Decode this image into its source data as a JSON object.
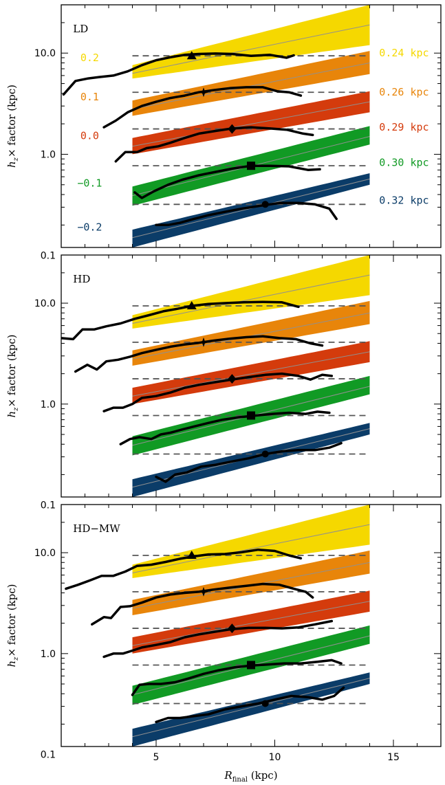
{
  "chart_data": {
    "type": "line",
    "xlabel": "R",
    "xlabel_sub": "final",
    "xlabel_unit": "(kpc)",
    "ylabel": "h",
    "ylabel_sub": "z",
    "ylabel_rest": "× factor (kpc)",
    "xlim": [
      1,
      17
    ],
    "ylim": [
      0.12,
      30
    ],
    "yscale": "log",
    "x_ticks": [
      5,
      10,
      15
    ],
    "y_ticks": [
      0.1,
      1.0,
      10.0
    ],
    "y_tick_labels": [
      "0.1",
      "1.0",
      "10.0"
    ],
    "colors": {
      "yellow": "#f5d800",
      "orange": "#e8850a",
      "red": "#d43b0c",
      "green": "#119a24",
      "navy": "#0b3c68",
      "gray": "#909090"
    },
    "band_x": [
      4,
      14
    ],
    "bands": [
      {
        "color": "yellow",
        "lower": [
          5.6,
          12
        ],
        "upper": [
          7.6,
          30
        ],
        "mid": [
          6.3,
          19
        ]
      },
      {
        "color": "orange",
        "lower": [
          2.4,
          6.2
        ],
        "upper": [
          3.4,
          10.5
        ],
        "mid": [
          2.8,
          8
        ]
      },
      {
        "color": "red",
        "lower": [
          1.0,
          2.6
        ],
        "upper": [
          1.45,
          4.2
        ],
        "mid": [
          1.2,
          3.3
        ]
      },
      {
        "color": "green",
        "lower": [
          0.31,
          1.25
        ],
        "upper": [
          0.48,
          1.9
        ],
        "mid": [
          0.39,
          1.5
        ]
      },
      {
        "color": "navy",
        "lower": [
          0.12,
          0.5
        ],
        "upper": [
          0.18,
          0.65
        ],
        "mid": [
          0.15,
          0.57
        ]
      }
    ],
    "dashed_levels": [
      {
        "y": 9.4,
        "x": [
          4,
          14
        ]
      },
      {
        "y": 4.1,
        "x": [
          4,
          14
        ]
      },
      {
        "y": 1.78,
        "x": [
          4,
          14
        ]
      },
      {
        "y": 0.77,
        "x": [
          4,
          14
        ]
      },
      {
        "y": 0.32,
        "x": [
          4,
          14
        ]
      }
    ],
    "markers": [
      {
        "shape": "triangle",
        "x": 6.5,
        "y": 9.4
      },
      {
        "shape": "star",
        "x": 7.0,
        "y": 4.1
      },
      {
        "shape": "diamond",
        "x": 8.2,
        "y": 1.78
      },
      {
        "shape": "square",
        "x": 9.0,
        "y": 0.77
      },
      {
        "shape": "circle",
        "x": 9.6,
        "y": 0.32
      }
    ],
    "panels": [
      {
        "label": "LD",
        "left_labels": [
          {
            "text": "0.2",
            "color": "yellow",
            "y": 9.0
          },
          {
            "text": "0.1",
            "color": "orange",
            "y": 3.7
          },
          {
            "text": "0.0",
            "color": "red",
            "y": 1.52
          },
          {
            "text": "−0.1",
            "color": "green",
            "y": 0.52
          },
          {
            "text": "−0.2",
            "color": "navy",
            "y": 0.19
          }
        ],
        "right_labels": [
          {
            "text": "0.24 kpc",
            "color": "yellow",
            "y": 10.0
          },
          {
            "text": "0.26 kpc",
            "color": "orange",
            "y": 4.1
          },
          {
            "text": "0.29 kpc",
            "color": "red",
            "y": 1.85
          },
          {
            "text": "0.30 kpc",
            "color": "green",
            "y": 0.83
          },
          {
            "text": "0.32 kpc",
            "color": "navy",
            "y": 0.35
          }
        ],
        "series": [
          {
            "x": [
              1.1,
              1.6,
              2.1,
              2.6,
              3.2,
              3.8,
              4.4,
              5.0,
              5.6,
              6.2,
              6.8,
              7.5,
              8.2,
              9.0,
              9.8,
              10.5,
              10.8
            ],
            "y": [
              3.9,
              5.3,
              5.6,
              5.8,
              6.0,
              6.6,
              7.6,
              8.5,
              9.1,
              9.6,
              9.8,
              9.9,
              9.8,
              9.4,
              9.6,
              9.0,
              9.5
            ]
          },
          {
            "x": [
              2.8,
              3.3,
              3.8,
              4.4,
              5.0,
              5.6,
              6.2,
              6.8,
              7.4,
              8.1,
              8.8,
              9.5,
              10.1,
              10.6,
              11.1
            ],
            "y": [
              1.85,
              2.15,
              2.6,
              3.0,
              3.3,
              3.6,
              3.8,
              4.1,
              4.3,
              4.5,
              4.6,
              4.6,
              4.2,
              4.1,
              3.8
            ]
          },
          {
            "x": [
              3.3,
              3.7,
              4.2,
              4.6,
              5.1,
              5.6,
              6.2,
              6.8,
              7.5,
              8.2,
              9.0,
              9.8,
              10.5,
              11.2,
              11.6
            ],
            "y": [
              0.85,
              1.05,
              1.05,
              1.15,
              1.2,
              1.3,
              1.45,
              1.6,
              1.7,
              1.8,
              1.85,
              1.8,
              1.75,
              1.6,
              1.55
            ]
          },
          {
            "x": [
              4.1,
              4.4,
              4.9,
              5.5,
              6.1,
              6.8,
              7.5,
              8.2,
              9.0,
              9.8,
              10.6,
              11.4,
              11.9
            ],
            "y": [
              0.42,
              0.37,
              0.43,
              0.5,
              0.56,
              0.62,
              0.67,
              0.72,
              0.77,
              0.77,
              0.76,
              0.7,
              0.71
            ]
          },
          {
            "x": [
              5.0,
              5.5,
              6.0,
              6.6,
              7.2,
              7.9,
              8.6,
              9.4,
              10.2,
              11.0,
              11.7,
              12.3,
              12.6
            ],
            "y": [
              0.2,
              0.2,
              0.21,
              0.23,
              0.25,
              0.27,
              0.29,
              0.31,
              0.33,
              0.33,
              0.32,
              0.29,
              0.23
            ]
          }
        ]
      },
      {
        "label": "HD",
        "left_labels": [],
        "right_labels": [],
        "series": [
          {
            "x": [
              1.0,
              1.5,
              1.9,
              2.4,
              2.9,
              3.5,
              4.1,
              4.7,
              5.3,
              5.9,
              6.5,
              7.2,
              7.9,
              8.7,
              9.5,
              10.3,
              11.0
            ],
            "y": [
              4.5,
              4.4,
              5.5,
              5.5,
              5.9,
              6.3,
              7.0,
              7.6,
              8.3,
              8.8,
              9.4,
              9.8,
              10.0,
              10.2,
              10.3,
              10.2,
              9.2
            ]
          },
          {
            "x": [
              1.6,
              2.1,
              2.5,
              2.9,
              3.4,
              3.9,
              4.4,
              5.0,
              5.6,
              6.2,
              6.8,
              7.4,
              8.1,
              8.8,
              9.5,
              10.2,
              10.9,
              11.5,
              12.0
            ],
            "y": [
              2.1,
              2.45,
              2.2,
              2.65,
              2.75,
              2.95,
              3.2,
              3.45,
              3.7,
              3.9,
              4.05,
              4.25,
              4.45,
              4.6,
              4.7,
              4.5,
              4.4,
              4.0,
              3.8
            ]
          },
          {
            "x": [
              2.8,
              3.2,
              3.6,
              4.0,
              4.4,
              5.0,
              5.6,
              6.2,
              6.8,
              7.5,
              8.2,
              8.9,
              9.6,
              10.3,
              11.0,
              11.5,
              12.0,
              12.4
            ],
            "y": [
              0.85,
              0.92,
              0.92,
              1.0,
              1.15,
              1.2,
              1.3,
              1.45,
              1.55,
              1.65,
              1.75,
              1.85,
              1.95,
              2.0,
              1.9,
              1.75,
              1.95,
              1.9
            ]
          },
          {
            "x": [
              3.5,
              3.9,
              4.3,
              4.8,
              5.2,
              5.6,
              6.1,
              6.6,
              7.2,
              7.8,
              8.5,
              9.2,
              9.9,
              10.6,
              11.3,
              11.8,
              12.3
            ],
            "y": [
              0.4,
              0.45,
              0.47,
              0.45,
              0.5,
              0.52,
              0.56,
              0.6,
              0.65,
              0.7,
              0.74,
              0.77,
              0.8,
              0.82,
              0.8,
              0.84,
              0.82
            ]
          },
          {
            "x": [
              5.0,
              5.4,
              5.8,
              6.3,
              6.9,
              7.5,
              8.2,
              8.9,
              9.6,
              10.3,
              11.0,
              11.7,
              12.3,
              12.8
            ],
            "y": [
              0.19,
              0.17,
              0.2,
              0.21,
              0.24,
              0.25,
              0.27,
              0.29,
              0.32,
              0.34,
              0.35,
              0.35,
              0.37,
              0.41
            ]
          }
        ]
      },
      {
        "label": "HD−MW",
        "left_labels": [],
        "right_labels": [],
        "series": [
          {
            "x": [
              1.2,
              1.7,
              2.2,
              2.7,
              3.2,
              3.7,
              4.2,
              4.8,
              5.4,
              6.0,
              6.6,
              7.2,
              7.9,
              8.6,
              9.3,
              10.0,
              10.6,
              11.1
            ],
            "y": [
              4.4,
              4.8,
              5.3,
              5.9,
              5.9,
              6.5,
              7.4,
              7.6,
              8.1,
              8.7,
              9.2,
              9.6,
              9.7,
              10.1,
              10.7,
              10.4,
              9.4,
              8.8
            ]
          },
          {
            "x": [
              2.3,
              2.8,
              3.1,
              3.5,
              3.9,
              4.4,
              5.0,
              5.6,
              6.2,
              6.8,
              7.4,
              8.1,
              8.8,
              9.5,
              10.2,
              10.8,
              11.3,
              11.6
            ],
            "y": [
              1.95,
              2.3,
              2.25,
              2.9,
              2.95,
              3.2,
              3.6,
              3.85,
              4.0,
              4.1,
              4.3,
              4.5,
              4.7,
              4.9,
              4.8,
              4.4,
              4.1,
              3.6
            ]
          },
          {
            "x": [
              2.8,
              3.2,
              3.6,
              4.0,
              4.4,
              5.0,
              5.6,
              6.2,
              6.8,
              7.5,
              8.2,
              8.9,
              9.6,
              10.3,
              11.0,
              11.7,
              12.4
            ],
            "y": [
              0.93,
              1.0,
              1.0,
              1.07,
              1.15,
              1.22,
              1.3,
              1.45,
              1.55,
              1.65,
              1.75,
              1.8,
              1.8,
              1.78,
              1.82,
              1.95,
              2.1
            ]
          },
          {
            "x": [
              4.0,
              4.3,
              4.7,
              5.2,
              5.8,
              6.4,
              7.0,
              7.6,
              8.3,
              9.0,
              9.7,
              10.4,
              11.1,
              11.8,
              12.4,
              12.8
            ],
            "y": [
              0.39,
              0.49,
              0.5,
              0.5,
              0.52,
              0.57,
              0.63,
              0.68,
              0.73,
              0.76,
              0.78,
              0.8,
              0.8,
              0.83,
              0.86,
              0.8
            ]
          },
          {
            "x": [
              5.0,
              5.5,
              6.0,
              6.6,
              7.2,
              7.9,
              8.6,
              9.3,
              10.0,
              10.7,
              11.4,
              12.0,
              12.5,
              12.9
            ],
            "y": [
              0.21,
              0.23,
              0.23,
              0.24,
              0.25,
              0.28,
              0.3,
              0.32,
              0.35,
              0.38,
              0.37,
              0.35,
              0.38,
              0.46
            ]
          }
        ]
      }
    ]
  }
}
